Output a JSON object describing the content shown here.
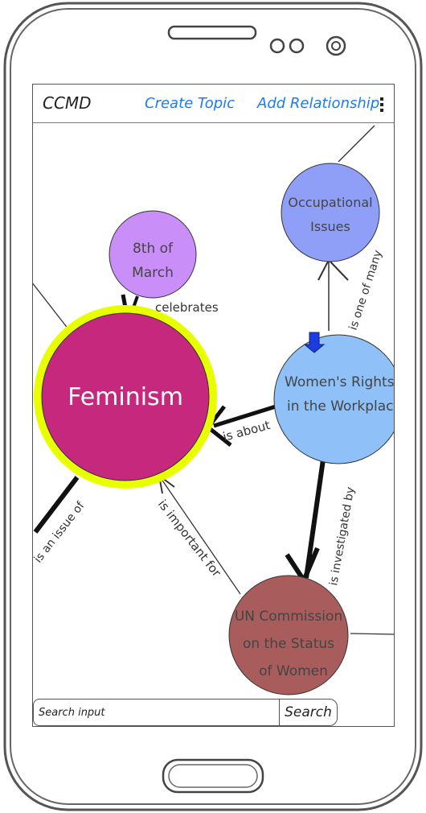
{
  "header": {
    "app_title": "CCMD",
    "create_topic_label": "Create Topic",
    "add_relationship_label": "Add Relationship"
  },
  "graph": {
    "nodes": {
      "feminism": {
        "label": "Feminism",
        "color": "#c5287c",
        "ring_color": "#e8ff00"
      },
      "eighth_of_march": {
        "label_line1": "8th of",
        "label_line2": "March",
        "color": "#c98ef7"
      },
      "occupational_issues": {
        "label_line1": "Occupational",
        "label_line2": "Issues",
        "color": "#8f9ff7"
      },
      "womens_rights": {
        "label_line1": "Women's Rights",
        "label_line2": "in the Workplace",
        "color": "#8fc0f7"
      },
      "un_commission": {
        "label_line1": "UN Commission",
        "label_line2": "on the Status",
        "label_line3": "of Women",
        "color": "#a85c5c"
      }
    },
    "edges": {
      "celebrates": "celebrates",
      "is_about": "is about",
      "is_one_of_many": "is one of many",
      "is_investigated_by": "is investigated by",
      "is_important_for": "is important for",
      "is_an_issue_of": "is an issue of"
    },
    "selected_marker_color": "#1a3ce0"
  },
  "search": {
    "placeholder": "Search input",
    "button_label": "Search"
  }
}
